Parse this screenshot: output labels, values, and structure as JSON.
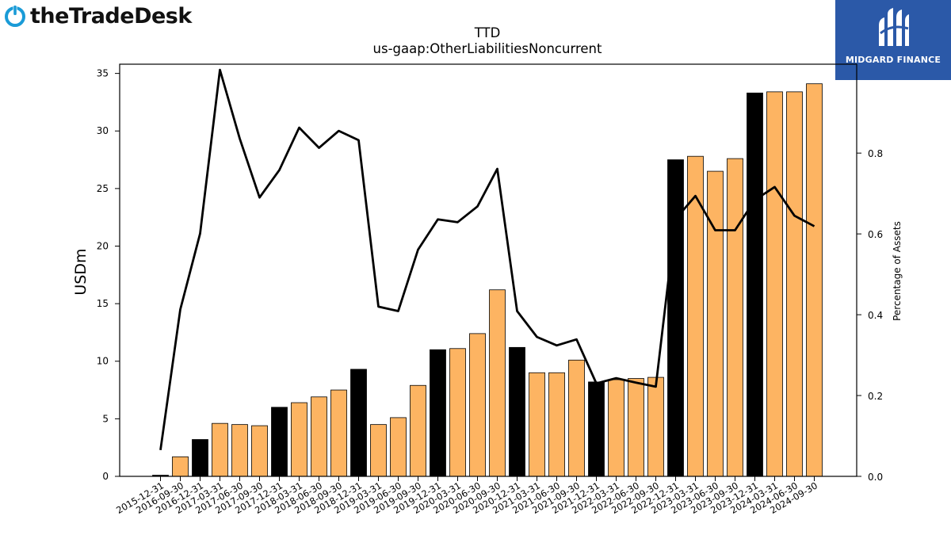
{
  "logos": {
    "left_text": "theTradeDesk",
    "right_text": "MIDGARD FINANCE"
  },
  "colors": {
    "bar_highlight": "#000000",
    "bar_normal": "#fdb462",
    "line": "#000000",
    "logo_blue": "#1a9bd7",
    "badge_bg": "#2b59a8"
  },
  "chart_data": {
    "type": "bar",
    "title": "TTD",
    "subtitle": "us-gaap:OtherLiabilitiesNoncurrent",
    "ylabel": "USDm",
    "y2label": "Percentage of Assets",
    "ylim": [
      0,
      35.8
    ],
    "y2lim": [
      0,
      1.02
    ],
    "yticks": [
      0,
      5,
      10,
      15,
      20,
      25,
      30,
      35
    ],
    "y2ticks": [
      0.0,
      0.2,
      0.4,
      0.6,
      0.8
    ],
    "categories": [
      "2015-12-31",
      "2016-09-30",
      "2016-12-31",
      "2017-03-31",
      "2017-06-30",
      "2017-09-30",
      "2017-12-31",
      "2018-03-31",
      "2018-06-30",
      "2018-09-30",
      "2018-12-31",
      "2019-03-31",
      "2019-06-30",
      "2019-09-30",
      "2019-12-31",
      "2020-03-31",
      "2020-06-30",
      "2020-09-30",
      "2020-12-31",
      "2021-03-31",
      "2021-06-30",
      "2021-09-30",
      "2021-12-31",
      "2022-03-31",
      "2022-06-30",
      "2022-09-30",
      "2022-12-31",
      "2023-03-31",
      "2023-06-30",
      "2023-09-30",
      "2023-12-31",
      "2024-03-31",
      "2024-06-30",
      "2024-09-30"
    ],
    "series": [
      {
        "type": "bar",
        "values": [
          0.1,
          1.7,
          3.2,
          4.6,
          4.5,
          4.4,
          6.0,
          6.4,
          6.9,
          7.5,
          9.3,
          4.5,
          5.1,
          7.9,
          11.0,
          11.1,
          12.4,
          16.2,
          11.2,
          9.0,
          9.0,
          10.1,
          8.2,
          8.4,
          8.5,
          8.6,
          27.5,
          27.8,
          26.5,
          27.6,
          33.3,
          33.4,
          33.4,
          34.1
        ],
        "highlight": [
          true,
          false,
          true,
          false,
          false,
          false,
          true,
          false,
          false,
          false,
          true,
          false,
          false,
          false,
          true,
          false,
          false,
          false,
          true,
          false,
          false,
          false,
          true,
          false,
          false,
          false,
          true,
          false,
          false,
          false,
          true,
          false,
          false,
          false
        ]
      },
      {
        "type": "line",
        "axis": "secondary",
        "values": [
          0.065,
          0.413,
          0.601,
          1.006,
          0.836,
          0.69,
          0.758,
          0.863,
          0.813,
          0.855,
          0.832,
          0.42,
          0.409,
          0.561,
          0.636,
          0.629,
          0.668,
          0.761,
          0.409,
          0.345,
          0.324,
          0.339,
          0.23,
          0.243,
          0.232,
          0.222,
          0.637,
          0.694,
          0.609,
          0.609,
          0.684,
          0.716,
          0.645,
          0.619
        ]
      }
    ]
  }
}
